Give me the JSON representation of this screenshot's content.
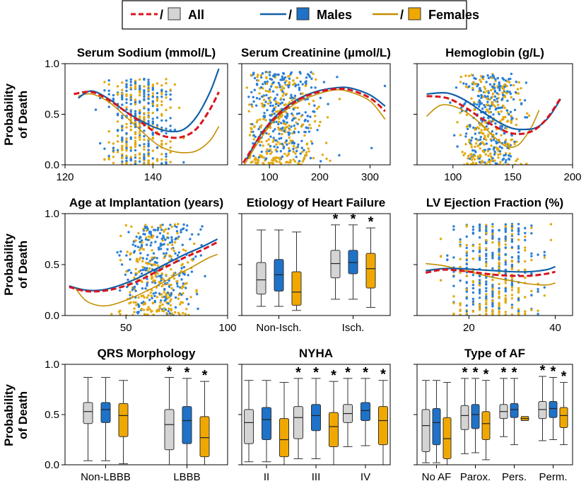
{
  "colors": {
    "all": "#d7141e",
    "males": "#1060a8",
    "females": "#c38e00",
    "all_box": "#d4d4d4",
    "males_box": "#1e72c8",
    "females_box": "#f0a800",
    "dot_male": "#2a7fd6",
    "dot_female": "#e3a90e"
  },
  "legend": {
    "items": [
      {
        "key": "all",
        "label": "All",
        "sep": "/"
      },
      {
        "key": "males",
        "label": "Males",
        "sep": "/"
      },
      {
        "key": "females",
        "label": "Females",
        "sep": "/"
      }
    ]
  },
  "y_axis_label_line1": "Probability",
  "y_axis_label_line2": "of Death",
  "chart_data": [
    {
      "id": "sodium",
      "type": "scatter",
      "title": "Serum Sodium (mmol/L)",
      "xlim": [
        120,
        157
      ],
      "ylim": [
        0,
        1
      ],
      "xticks": [
        120,
        140
      ],
      "yticks": [
        "0.0",
        "0.5",
        "1.0"
      ],
      "series": [
        {
          "name": "All",
          "x": [
            122,
            126,
            130,
            134,
            138,
            141,
            144,
            147,
            150,
            153,
            155
          ],
          "y": [
            0.7,
            0.72,
            0.64,
            0.52,
            0.4,
            0.31,
            0.27,
            0.28,
            0.36,
            0.55,
            0.72
          ]
        },
        {
          "name": "Males",
          "x": [
            123,
            126,
            130,
            134,
            138,
            141,
            144,
            147,
            150,
            153,
            155
          ],
          "y": [
            0.66,
            0.73,
            0.65,
            0.52,
            0.42,
            0.36,
            0.33,
            0.35,
            0.48,
            0.72,
            0.95
          ]
        },
        {
          "name": "Females",
          "x": [
            123,
            126,
            130,
            134,
            138,
            141,
            144,
            147,
            150,
            153,
            155
          ],
          "y": [
            0.68,
            0.7,
            0.62,
            0.47,
            0.31,
            0.2,
            0.14,
            0.12,
            0.14,
            0.24,
            0.38
          ]
        }
      ],
      "scatter": {
        "xrange": [
          124,
          150
        ],
        "xcenter": 137,
        "xspread": 5,
        "ymin": 0,
        "ymax": 0.85,
        "n": 220,
        "grid": 1
      }
    },
    {
      "id": "creatinine",
      "type": "scatter",
      "title": "Serum Creatinine (µmol/L)",
      "xlim": [
        45,
        340
      ],
      "ylim": [
        0,
        1
      ],
      "xticks": [
        100,
        200,
        300
      ],
      "yticks": [],
      "series": [
        {
          "name": "All",
          "x": [
            48,
            80,
            110,
            150,
            190,
            230,
            260,
            300,
            330
          ],
          "y": [
            0.02,
            0.27,
            0.46,
            0.62,
            0.71,
            0.75,
            0.74,
            0.66,
            0.53
          ]
        },
        {
          "name": "Males",
          "x": [
            55,
            80,
            110,
            150,
            190,
            230,
            260,
            300,
            330
          ],
          "y": [
            0.06,
            0.28,
            0.47,
            0.63,
            0.72,
            0.76,
            0.76,
            0.69,
            0.58
          ]
        },
        {
          "name": "Females",
          "x": [
            50,
            80,
            110,
            150,
            190,
            230,
            260,
            300,
            330
          ],
          "y": [
            0.0,
            0.24,
            0.44,
            0.6,
            0.69,
            0.74,
            0.72,
            0.63,
            0.45
          ]
        }
      ],
      "scatter": {
        "xrange": [
          55,
          330
        ],
        "xcenter": 120,
        "xspread": 50,
        "ymin": 0,
        "ymax": 0.92,
        "n": 260,
        "grid": 0
      }
    },
    {
      "id": "hemoglobin",
      "type": "scatter",
      "title": "Hemoglobin (g/L)",
      "xlim": [
        70,
        200
      ],
      "ylim": [
        0,
        1
      ],
      "xticks": [
        100,
        150,
        200
      ],
      "yticks": [],
      "series": [
        {
          "name": "All",
          "x": [
            78,
            95,
            110,
            125,
            140,
            150,
            160,
            170,
            180,
            190
          ],
          "y": [
            0.68,
            0.66,
            0.57,
            0.45,
            0.35,
            0.31,
            0.31,
            0.36,
            0.48,
            0.66
          ]
        },
        {
          "name": "Males",
          "x": [
            78,
            95,
            110,
            125,
            140,
            150,
            160,
            170,
            180,
            190
          ],
          "y": [
            0.7,
            0.71,
            0.64,
            0.52,
            0.41,
            0.36,
            0.35,
            0.37,
            0.47,
            0.65
          ]
        },
        {
          "name": "Females",
          "x": [
            78,
            90,
            105,
            120,
            135,
            145,
            155,
            165,
            172
          ],
          "y": [
            0.48,
            0.59,
            0.56,
            0.44,
            0.27,
            0.18,
            0.2,
            0.36,
            0.54
          ]
        }
      ],
      "scatter": {
        "xrange": [
          80,
          185
        ],
        "xcenter": 132,
        "xspread": 18,
        "ymin": 0,
        "ymax": 0.9,
        "n": 240,
        "grid": 0
      }
    },
    {
      "id": "age",
      "type": "scatter",
      "title": "Age at Implantation (years)",
      "xlim": [
        20,
        100
      ],
      "ylim": [
        0,
        1
      ],
      "xticks": [
        50,
        100
      ],
      "yticks": [
        "0.0",
        "0.5",
        "1.0"
      ],
      "series": [
        {
          "name": "All",
          "x": [
            22,
            30,
            38,
            46,
            55,
            63,
            71,
            79,
            87,
            95
          ],
          "y": [
            0.28,
            0.24,
            0.24,
            0.27,
            0.33,
            0.41,
            0.49,
            0.57,
            0.64,
            0.72
          ]
        },
        {
          "name": "Males",
          "x": [
            22,
            30,
            38,
            46,
            55,
            63,
            71,
            79,
            87,
            95
          ],
          "y": [
            0.29,
            0.25,
            0.25,
            0.29,
            0.36,
            0.44,
            0.52,
            0.6,
            0.67,
            0.75
          ]
        },
        {
          "name": "Females",
          "x": [
            25,
            30,
            36,
            42,
            50,
            58,
            66,
            74,
            82,
            90,
            95
          ],
          "y": [
            0.27,
            0.15,
            0.1,
            0.1,
            0.15,
            0.22,
            0.3,
            0.39,
            0.47,
            0.56,
            0.6
          ]
        }
      ],
      "scatter": {
        "xrange": [
          25,
          92
        ],
        "xcenter": 66,
        "xspread": 12,
        "ymin": 0,
        "ymax": 0.9,
        "n": 240,
        "grid": 0
      }
    },
    {
      "id": "etiology",
      "type": "box",
      "title": "Etiology of Heart Failure",
      "categories": [
        "Non-Isch.",
        "Isch."
      ],
      "ylim": [
        0,
        1
      ],
      "yticks": [],
      "groups": [
        {
          "all": [
            0.09,
            0.21,
            0.35,
            0.52,
            0.84
          ],
          "males": [
            0.09,
            0.24,
            0.4,
            0.55,
            0.84
          ],
          "females": [
            0.05,
            0.1,
            0.23,
            0.43,
            0.82
          ],
          "stars": [
            false,
            false,
            false
          ]
        },
        {
          "all": [
            0.16,
            0.37,
            0.51,
            0.64,
            0.89
          ],
          "males": [
            0.16,
            0.41,
            0.52,
            0.64,
            0.89
          ],
          "females": [
            0.08,
            0.27,
            0.46,
            0.61,
            0.86
          ],
          "stars": [
            true,
            true,
            true
          ]
        }
      ]
    },
    {
      "id": "ef",
      "type": "scatter",
      "title": "LV Ejection Fraction (%)",
      "xlim": [
        8,
        44
      ],
      "ylim": [
        0,
        1
      ],
      "xticks": [
        20,
        40
      ],
      "yticks": [],
      "series": [
        {
          "name": "All",
          "x": [
            10,
            14,
            18,
            22,
            26,
            30,
            34,
            38,
            40
          ],
          "y": [
            0.42,
            0.45,
            0.44,
            0.42,
            0.4,
            0.39,
            0.39,
            0.41,
            0.43
          ]
        },
        {
          "name": "Males",
          "x": [
            10,
            14,
            18,
            22,
            26,
            30,
            34,
            38,
            40
          ],
          "y": [
            0.44,
            0.46,
            0.46,
            0.45,
            0.44,
            0.43,
            0.43,
            0.45,
            0.48
          ]
        },
        {
          "name": "Females",
          "x": [
            10,
            14,
            18,
            22,
            26,
            30,
            34,
            38,
            40
          ],
          "y": [
            0.51,
            0.49,
            0.45,
            0.41,
            0.37,
            0.34,
            0.31,
            0.3,
            0.32
          ]
        }
      ],
      "scatter": {
        "xrange": [
          12,
          40
        ],
        "xcenter": 26,
        "xspread": 7,
        "ymin": 0,
        "ymax": 0.9,
        "n": 240,
        "grid": 1.5
      }
    },
    {
      "id": "qrs",
      "type": "box",
      "title": "QRS Morphology",
      "categories": [
        "Non-LBBB",
        "LBBB"
      ],
      "ylim": [
        0,
        1
      ],
      "yticks": [
        "0.0",
        "0.5",
        "1.0"
      ],
      "groups": [
        {
          "all": [
            0.04,
            0.41,
            0.53,
            0.62,
            0.87
          ],
          "males": [
            0.04,
            0.42,
            0.55,
            0.62,
            0.87
          ],
          "females": [
            0.01,
            0.28,
            0.49,
            0.61,
            0.84
          ],
          "stars": [
            false,
            false,
            false
          ]
        },
        {
          "all": [
            0.0,
            0.15,
            0.4,
            0.55,
            0.87
          ],
          "males": [
            0.0,
            0.21,
            0.44,
            0.58,
            0.86
          ],
          "females": [
            0.0,
            0.08,
            0.27,
            0.48,
            0.83
          ],
          "stars": [
            true,
            true,
            true
          ]
        }
      ]
    },
    {
      "id": "nyha",
      "type": "box",
      "title": "NYHA",
      "categories": [
        "II",
        "III",
        "IV"
      ],
      "ylim": [
        0,
        1
      ],
      "yticks": [],
      "groups": [
        {
          "all": [
            0.03,
            0.21,
            0.42,
            0.55,
            0.84
          ],
          "males": [
            0.03,
            0.25,
            0.45,
            0.57,
            0.84
          ],
          "females": [
            0.0,
            0.08,
            0.25,
            0.46,
            0.82
          ],
          "stars": [
            false,
            false,
            false
          ]
        },
        {
          "all": [
            0.06,
            0.26,
            0.47,
            0.58,
            0.86
          ],
          "males": [
            0.06,
            0.34,
            0.49,
            0.6,
            0.86
          ],
          "females": [
            0.0,
            0.18,
            0.38,
            0.52,
            0.83
          ],
          "stars": [
            true,
            true,
            true
          ]
        },
        {
          "all": [
            0.18,
            0.42,
            0.51,
            0.6,
            0.86
          ],
          "males": [
            0.19,
            0.44,
            0.54,
            0.62,
            0.86
          ],
          "females": [
            0.0,
            0.2,
            0.44,
            0.58,
            0.84
          ],
          "stars": [
            true,
            true,
            true
          ]
        }
      ]
    },
    {
      "id": "af",
      "type": "box",
      "title": "Type of AF",
      "categories": [
        "No AF",
        "Parox.",
        "Pers.",
        "Perm."
      ],
      "ylim": [
        0,
        1
      ],
      "yticks": [],
      "groups": [
        {
          "all": [
            0.02,
            0.13,
            0.39,
            0.55,
            0.84
          ],
          "males": [
            0.02,
            0.2,
            0.42,
            0.56,
            0.84
          ],
          "females": [
            0.0,
            0.06,
            0.26,
            0.47,
            0.82
          ],
          "stars": [
            false,
            false,
            false
          ]
        },
        {
          "all": [
            0.11,
            0.35,
            0.49,
            0.59,
            0.86
          ],
          "males": [
            0.12,
            0.36,
            0.5,
            0.6,
            0.86
          ],
          "females": [
            0.05,
            0.25,
            0.41,
            0.53,
            0.84
          ],
          "stars": [
            true,
            true,
            true
          ]
        },
        {
          "all": [
            0.28,
            0.46,
            0.53,
            0.6,
            0.86
          ],
          "males": [
            0.2,
            0.47,
            0.55,
            0.61,
            0.86
          ],
          "females": [
            0.44,
            0.44,
            0.46,
            0.48,
            0.48
          ],
          "stars": [
            true,
            true,
            false
          ]
        },
        {
          "all": [
            0.24,
            0.46,
            0.55,
            0.63,
            0.88
          ],
          "males": [
            0.25,
            0.47,
            0.56,
            0.63,
            0.87
          ],
          "females": [
            0.2,
            0.37,
            0.49,
            0.57,
            0.82
          ],
          "stars": [
            true,
            true,
            true
          ]
        }
      ]
    }
  ]
}
